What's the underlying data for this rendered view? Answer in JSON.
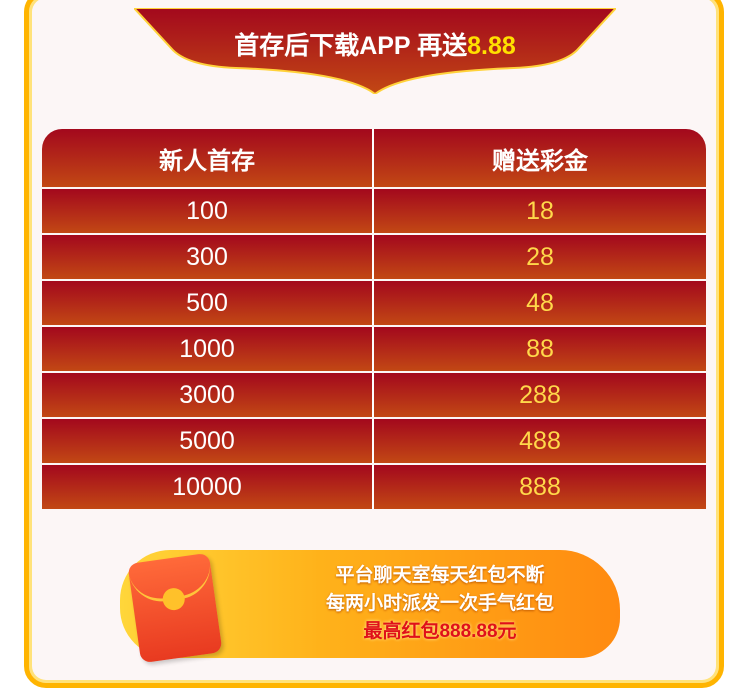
{
  "banner": {
    "title": "首存后下载APP 再送",
    "highlight": "8.88"
  },
  "table": {
    "headers": [
      "新人首存",
      "赠送彩金"
    ],
    "rows": [
      [
        "100",
        "18"
      ],
      [
        "300",
        "28"
      ],
      [
        "500",
        "48"
      ],
      [
        "1000",
        "88"
      ],
      [
        "3000",
        "288"
      ],
      [
        "5000",
        "488"
      ],
      [
        "10000",
        "888"
      ]
    ]
  },
  "promo": {
    "line1": "平台聊天室每天红包不断",
    "line2": "每两小时派发一次手气红包",
    "line3": "最高红包888.88元"
  },
  "colors": {
    "frame": "#ffb400",
    "row_top": "#a3081d",
    "row_bottom": "#c24814",
    "bonus_text": "#ffd84a"
  }
}
